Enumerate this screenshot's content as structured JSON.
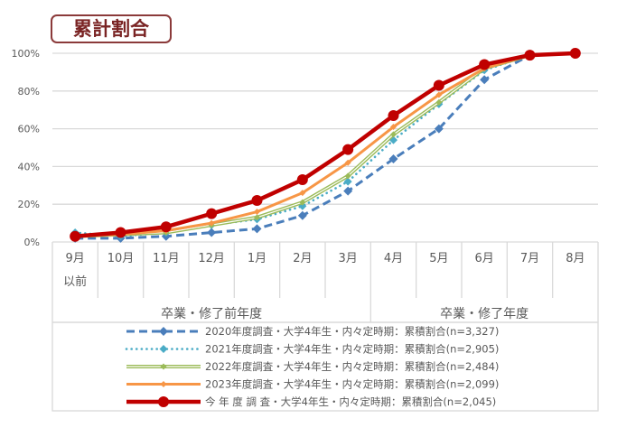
{
  "chart_data": {
    "type": "line",
    "title": "累計割合",
    "categories": [
      "9月\n以前",
      "10月",
      "11月",
      "12月",
      "1月",
      "2月",
      "3月",
      "4月",
      "5月",
      "6月",
      "7月",
      "8月"
    ],
    "category_lines": [
      [
        "9月",
        "以前"
      ],
      [
        "10月"
      ],
      [
        "11月"
      ],
      [
        "12月"
      ],
      [
        "1月"
      ],
      [
        "2月"
      ],
      [
        "3月"
      ],
      [
        "4月"
      ],
      [
        "5月"
      ],
      [
        "6月"
      ],
      [
        "7月"
      ],
      [
        "8月"
      ]
    ],
    "category_groups": [
      {
        "label": "卒業・修了前年度",
        "span": 7
      },
      {
        "label": "卒業・修了年度",
        "span": 5
      }
    ],
    "ylim": [
      0,
      100
    ],
    "yticks": [
      "0%",
      "20%",
      "40%",
      "60%",
      "80%",
      "100%"
    ],
    "grid": true,
    "legend_position": "bottom",
    "series": [
      {
        "name": "2020年度調査・大学4年生・内々定時期：累積割合(n=3,327)",
        "color": "#4a7ebb",
        "style": "dashed",
        "marker": "diamond",
        "values": [
          2,
          2,
          3,
          5,
          7,
          14,
          27,
          44,
          60,
          86,
          99,
          null
        ]
      },
      {
        "name": "2021年度調査・大学4年生・内々定時期：累積割合(n=2,905)",
        "color": "#4bacc6",
        "style": "dotted",
        "marker": "diamond",
        "values": [
          5,
          3,
          5,
          9,
          12,
          19,
          32,
          54,
          73,
          91,
          99,
          null
        ]
      },
      {
        "name": "2022年度調査・大学4年生・内々定時期：累積割合(n=2,484)",
        "color": "#9bbb59",
        "style": "double",
        "marker": "diamond",
        "values": [
          3,
          4,
          5,
          9,
          13,
          21,
          35,
          57,
          74,
          92,
          99,
          null
        ]
      },
      {
        "name": "2023年度調査・大学4年生・内々定時期：累積割合(n=2,099)",
        "color": "#f79646",
        "style": "solid",
        "marker": "diamond",
        "values": [
          3,
          4,
          6,
          10,
          16,
          26,
          42,
          61,
          78,
          92,
          99,
          null
        ]
      },
      {
        "name": "今 年 度 調 査・大学4年生・内々定時期：累積割合(n=2,045)",
        "color": "#c00000",
        "style": "solid-thick",
        "marker": "circle",
        "values": [
          3,
          5,
          8,
          15,
          22,
          33,
          49,
          67,
          83,
          94,
          99,
          100
        ]
      }
    ]
  }
}
